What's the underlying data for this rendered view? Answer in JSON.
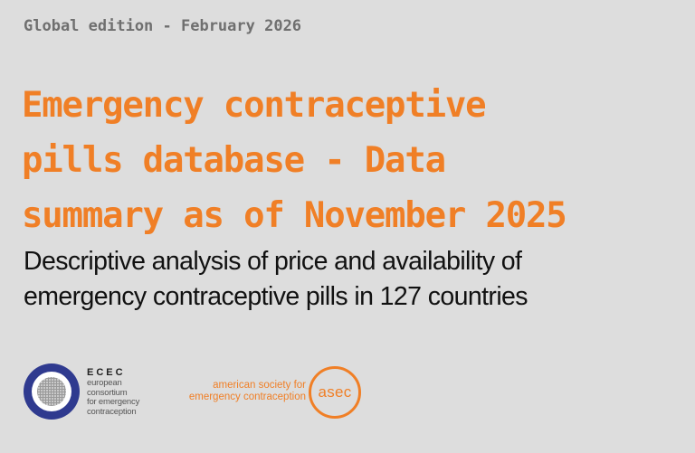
{
  "header": {
    "edition": "Global edition - February 2026"
  },
  "title": {
    "lines": [
      "Emergency contraceptive",
      "pills database - Data",
      "summary as of November 2025"
    ]
  },
  "subtitle": {
    "lines": [
      "Descriptive analysis of price and availability of",
      "emergency contraceptive pills in 127 countries"
    ]
  },
  "logos": {
    "ecec": {
      "abbr": "ECEC",
      "lines": [
        "european",
        "consortium",
        "for emergency",
        "contraception"
      ],
      "color": "#2f3a8f"
    },
    "asec": {
      "lines": [
        "american society for",
        "emergency contraception"
      ],
      "abbr": "asec",
      "color": "#f07f26"
    }
  },
  "colors": {
    "background": "#dddddd",
    "accent": "#f07f26",
    "edition_text": "#6f6f6f",
    "subtitle_text": "#111111"
  }
}
